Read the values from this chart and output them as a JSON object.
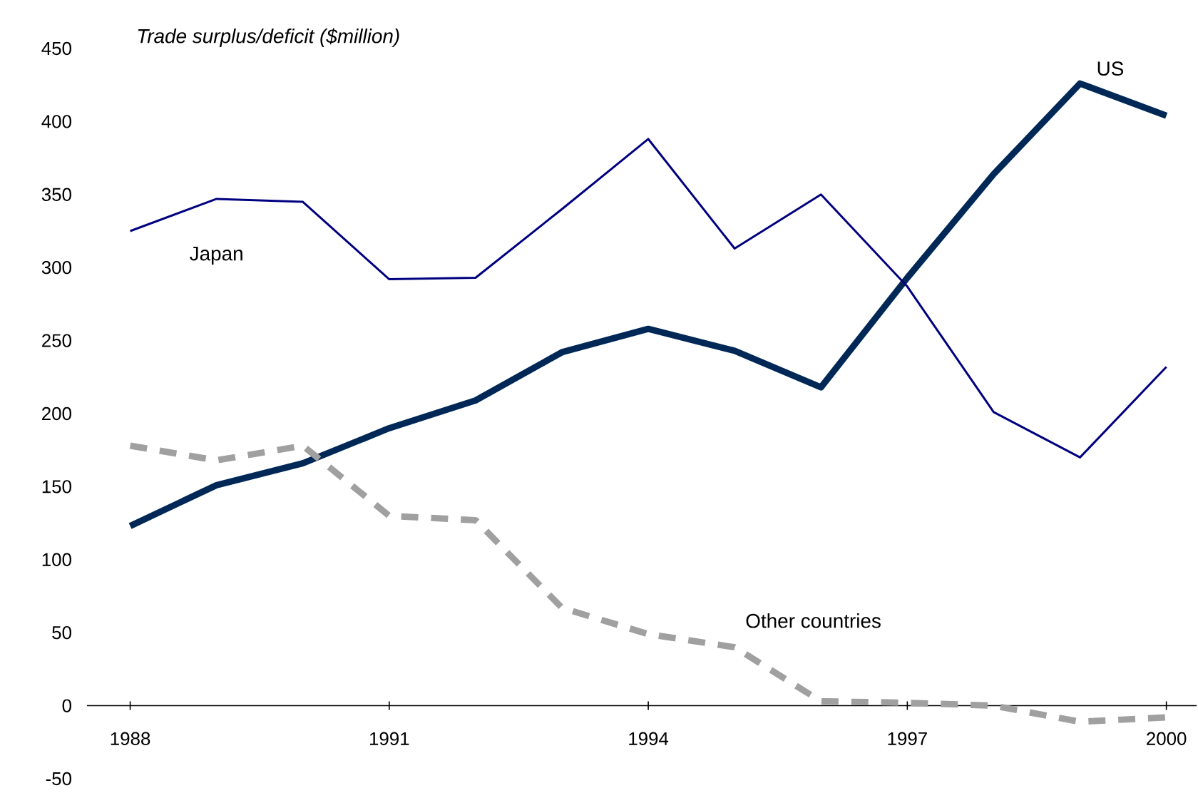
{
  "chart_data": {
    "type": "line",
    "ylabel": "Trade surplus/deficit ($million)",
    "x": [
      1988,
      1989,
      1990,
      1991,
      1992,
      1993,
      1994,
      1995,
      1996,
      1997,
      1998,
      1999,
      2000
    ],
    "xlim": [
      1987.5,
      2000.35
    ],
    "xticks": [
      1988,
      1991,
      1994,
      1997,
      2000
    ],
    "ylim": [
      -50,
      450
    ],
    "yticks": [
      -50,
      0,
      50,
      100,
      150,
      200,
      250,
      300,
      350,
      400,
      450
    ],
    "grid": false,
    "legend": false,
    "marker": "none",
    "series": [
      {
        "name": "US",
        "color": "#002857",
        "line_style": "solid",
        "values": [
          123,
          151,
          166,
          190,
          209,
          242,
          258,
          243,
          218,
          293,
          364,
          426,
          404
        ]
      },
      {
        "name": "Japan",
        "color": "#000080",
        "line_style": "solid",
        "values": [
          325,
          347,
          345,
          292,
          293,
          340,
          388,
          313,
          350,
          287,
          201,
          170,
          232
        ]
      },
      {
        "name": "Other countries",
        "color": "#a0a0a0",
        "line_style": "dashed",
        "values": [
          178,
          168,
          178,
          130,
          127,
          67,
          49,
          40,
          3,
          2,
          0,
          -11,
          -8
        ]
      }
    ]
  }
}
